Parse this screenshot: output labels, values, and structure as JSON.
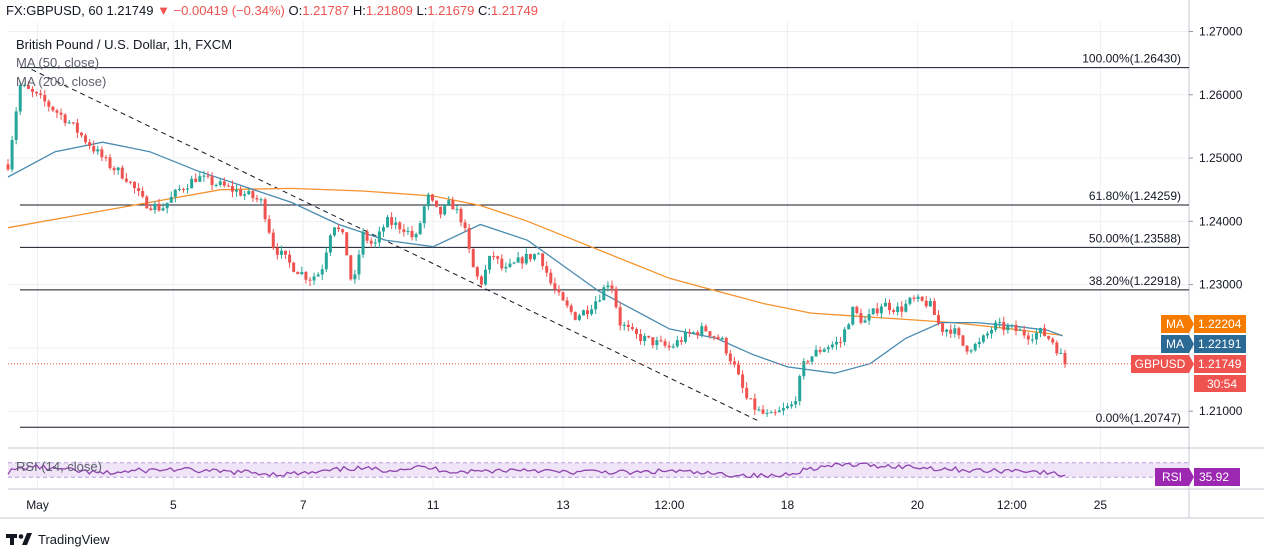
{
  "header": {
    "symbol": "FX:GBPUSD, 60",
    "last": "1.21749",
    "change": "−0.00419 (−0.34%)",
    "o_label": "O:",
    "o_value": "1.21787",
    "h_label": "H:",
    "h_value": "1.21809",
    "l_label": "L:",
    "l_value": "1.21679",
    "c_label": "C:",
    "c_value": "1.21749"
  },
  "legend": {
    "title": "British Pound / U.S. Dollar, 1h, FXCM",
    "ma50": "MA (50, close)",
    "ma200": "MA (200, close)",
    "rsi": "RSI (14, close)"
  },
  "badges": [
    {
      "label": "MA",
      "value": "1.22204",
      "color": "#f57c00",
      "price": 1.22204
    },
    {
      "label": "MA",
      "value": "1.22191",
      "color": "#2b6a94",
      "price": 1.22191
    },
    {
      "label": "GBPUSD",
      "value": "1.21749",
      "color": "#ef5350",
      "price": 1.21749
    }
  ],
  "countdown": "30:54",
  "rsi_badge": {
    "label": "RSI",
    "value": "35.92",
    "color": "#9c27b0"
  },
  "footer": {
    "brand": "TradingView"
  },
  "colors": {
    "up": "#26a69a",
    "down": "#ef5350",
    "ma50": "#4a8bb0",
    "ma200": "#f5922f",
    "rsi": "#8e44ad",
    "rsi_band": "#e9d9f5"
  },
  "chart_data": {
    "type": "candlestick",
    "title": "British Pound / U.S. Dollar, 1h, FXCM",
    "ylim": [
      1.2045,
      1.2715
    ],
    "y_ticks": [
      "1.27000",
      "1.26000",
      "1.25000",
      "1.24000",
      "1.23000",
      "1.22000",
      "1.21000"
    ],
    "y_tick_values": [
      1.27,
      1.26,
      1.25,
      1.24,
      1.23,
      1.22,
      1.21
    ],
    "x_ticks": [
      "May",
      "5",
      "7",
      "11",
      "13",
      "12:00",
      "18",
      "20",
      "12:00",
      "25"
    ],
    "x_tick_positions": [
      0.025,
      0.14,
      0.25,
      0.36,
      0.47,
      0.56,
      0.66,
      0.77,
      0.85,
      0.925
    ],
    "fib_levels": [
      {
        "label": "100.00%(1.26430)",
        "value": 1.2643
      },
      {
        "label": "61.80%(1.24259)",
        "value": 1.24259
      },
      {
        "label": "50.00%(1.23588)",
        "value": 1.23588
      },
      {
        "label": "38.20%(1.22918)",
        "value": 1.22918
      },
      {
        "label": "0.00%(1.20747)",
        "value": 1.20747
      }
    ],
    "close_path": [
      [
        0.0,
        1.249
      ],
      [
        0.01,
        1.2615
      ],
      [
        0.03,
        1.259
      ],
      [
        0.05,
        1.256
      ],
      [
        0.07,
        1.252
      ],
      [
        0.085,
        1.249
      ],
      [
        0.1,
        1.247
      ],
      [
        0.115,
        1.243
      ],
      [
        0.13,
        1.242
      ],
      [
        0.145,
        1.245
      ],
      [
        0.16,
        1.247
      ],
      [
        0.175,
        1.246
      ],
      [
        0.19,
        1.245
      ],
      [
        0.205,
        1.244
      ],
      [
        0.215,
        1.243
      ],
      [
        0.225,
        1.236
      ],
      [
        0.24,
        1.233
      ],
      [
        0.255,
        1.231
      ],
      [
        0.265,
        1.232
      ],
      [
        0.275,
        1.24
      ],
      [
        0.285,
        1.237
      ],
      [
        0.292,
        1.229
      ],
      [
        0.3,
        1.238
      ],
      [
        0.31,
        1.236
      ],
      [
        0.32,
        1.24
      ],
      [
        0.335,
        1.239
      ],
      [
        0.345,
        1.237
      ],
      [
        0.355,
        1.244
      ],
      [
        0.365,
        1.241
      ],
      [
        0.375,
        1.243
      ],
      [
        0.385,
        1.24
      ],
      [
        0.393,
        1.233
      ],
      [
        0.4,
        1.23
      ],
      [
        0.41,
        1.235
      ],
      [
        0.42,
        1.232
      ],
      [
        0.435,
        1.234
      ],
      [
        0.45,
        1.235
      ],
      [
        0.46,
        1.23
      ],
      [
        0.47,
        1.227
      ],
      [
        0.48,
        1.225
      ],
      [
        0.49,
        1.226
      ],
      [
        0.5,
        1.228
      ],
      [
        0.51,
        1.231
      ],
      [
        0.518,
        1.224
      ],
      [
        0.53,
        1.222
      ],
      [
        0.545,
        1.221
      ],
      [
        0.56,
        1.22
      ],
      [
        0.575,
        1.222
      ],
      [
        0.59,
        1.223
      ],
      [
        0.605,
        1.221
      ],
      [
        0.615,
        1.217
      ],
      [
        0.625,
        1.212
      ],
      [
        0.635,
        1.21
      ],
      [
        0.645,
        1.209
      ],
      [
        0.655,
        1.21
      ],
      [
        0.665,
        1.211
      ],
      [
        0.675,
        1.218
      ],
      [
        0.69,
        1.22
      ],
      [
        0.705,
        1.221
      ],
      [
        0.715,
        1.226
      ],
      [
        0.725,
        1.224
      ],
      [
        0.74,
        1.227
      ],
      [
        0.755,
        1.226
      ],
      [
        0.765,
        1.2275
      ],
      [
        0.78,
        1.227
      ],
      [
        0.79,
        1.223
      ],
      [
        0.8,
        1.223
      ],
      [
        0.81,
        1.22
      ],
      [
        0.822,
        1.2205
      ],
      [
        0.835,
        1.2235
      ],
      [
        0.85,
        1.223
      ],
      [
        0.865,
        1.222
      ],
      [
        0.875,
        1.2225
      ],
      [
        0.885,
        1.221
      ],
      [
        0.895,
        1.2175
      ]
    ],
    "ma50_path": [
      [
        0.0,
        1.247
      ],
      [
        0.04,
        1.251
      ],
      [
        0.08,
        1.2525
      ],
      [
        0.12,
        1.251
      ],
      [
        0.16,
        1.248
      ],
      [
        0.2,
        1.2455
      ],
      [
        0.24,
        1.243
      ],
      [
        0.28,
        1.2395
      ],
      [
        0.32,
        1.237
      ],
      [
        0.36,
        1.236
      ],
      [
        0.4,
        1.2395
      ],
      [
        0.44,
        1.237
      ],
      [
        0.47,
        1.233
      ],
      [
        0.5,
        1.229
      ],
      [
        0.53,
        1.226
      ],
      [
        0.56,
        1.223
      ],
      [
        0.6,
        1.2215
      ],
      [
        0.63,
        1.219
      ],
      [
        0.66,
        1.217
      ],
      [
        0.7,
        1.216
      ],
      [
        0.73,
        1.2175
      ],
      [
        0.76,
        1.2215
      ],
      [
        0.79,
        1.224
      ],
      [
        0.82,
        1.224
      ],
      [
        0.85,
        1.2235
      ],
      [
        0.88,
        1.2228
      ],
      [
        0.893,
        1.2219
      ]
    ],
    "ma200_path": [
      [
        0.0,
        1.239
      ],
      [
        0.06,
        1.241
      ],
      [
        0.12,
        1.243
      ],
      [
        0.18,
        1.245
      ],
      [
        0.24,
        1.2452
      ],
      [
        0.3,
        1.2448
      ],
      [
        0.36,
        1.244
      ],
      [
        0.4,
        1.2425
      ],
      [
        0.44,
        1.24
      ],
      [
        0.48,
        1.237
      ],
      [
        0.52,
        1.234
      ],
      [
        0.56,
        1.231
      ],
      [
        0.6,
        1.229
      ],
      [
        0.64,
        1.227
      ],
      [
        0.68,
        1.2255
      ],
      [
        0.72,
        1.225
      ],
      [
        0.76,
        1.2245
      ],
      [
        0.8,
        1.224
      ],
      [
        0.84,
        1.2232
      ],
      [
        0.893,
        1.222
      ]
    ],
    "rsi_path": [
      [
        0.0,
        45
      ],
      [
        0.02,
        60
      ],
      [
        0.05,
        50
      ],
      [
        0.08,
        40
      ],
      [
        0.11,
        48
      ],
      [
        0.14,
        52
      ],
      [
        0.17,
        46
      ],
      [
        0.2,
        44
      ],
      [
        0.23,
        38
      ],
      [
        0.26,
        42
      ],
      [
        0.29,
        55
      ],
      [
        0.32,
        50
      ],
      [
        0.35,
        58
      ],
      [
        0.38,
        45
      ],
      [
        0.41,
        48
      ],
      [
        0.44,
        52
      ],
      [
        0.47,
        43
      ],
      [
        0.5,
        46
      ],
      [
        0.53,
        42
      ],
      [
        0.56,
        48
      ],
      [
        0.59,
        40
      ],
      [
        0.62,
        36
      ],
      [
        0.65,
        32
      ],
      [
        0.68,
        55
      ],
      [
        0.71,
        65
      ],
      [
        0.74,
        62
      ],
      [
        0.77,
        58
      ],
      [
        0.8,
        52
      ],
      [
        0.83,
        47
      ],
      [
        0.86,
        50
      ],
      [
        0.893,
        35.92
      ]
    ],
    "trendline": [
      [
        0.02,
        1.264
      ],
      [
        0.635,
        1.2085
      ]
    ]
  }
}
